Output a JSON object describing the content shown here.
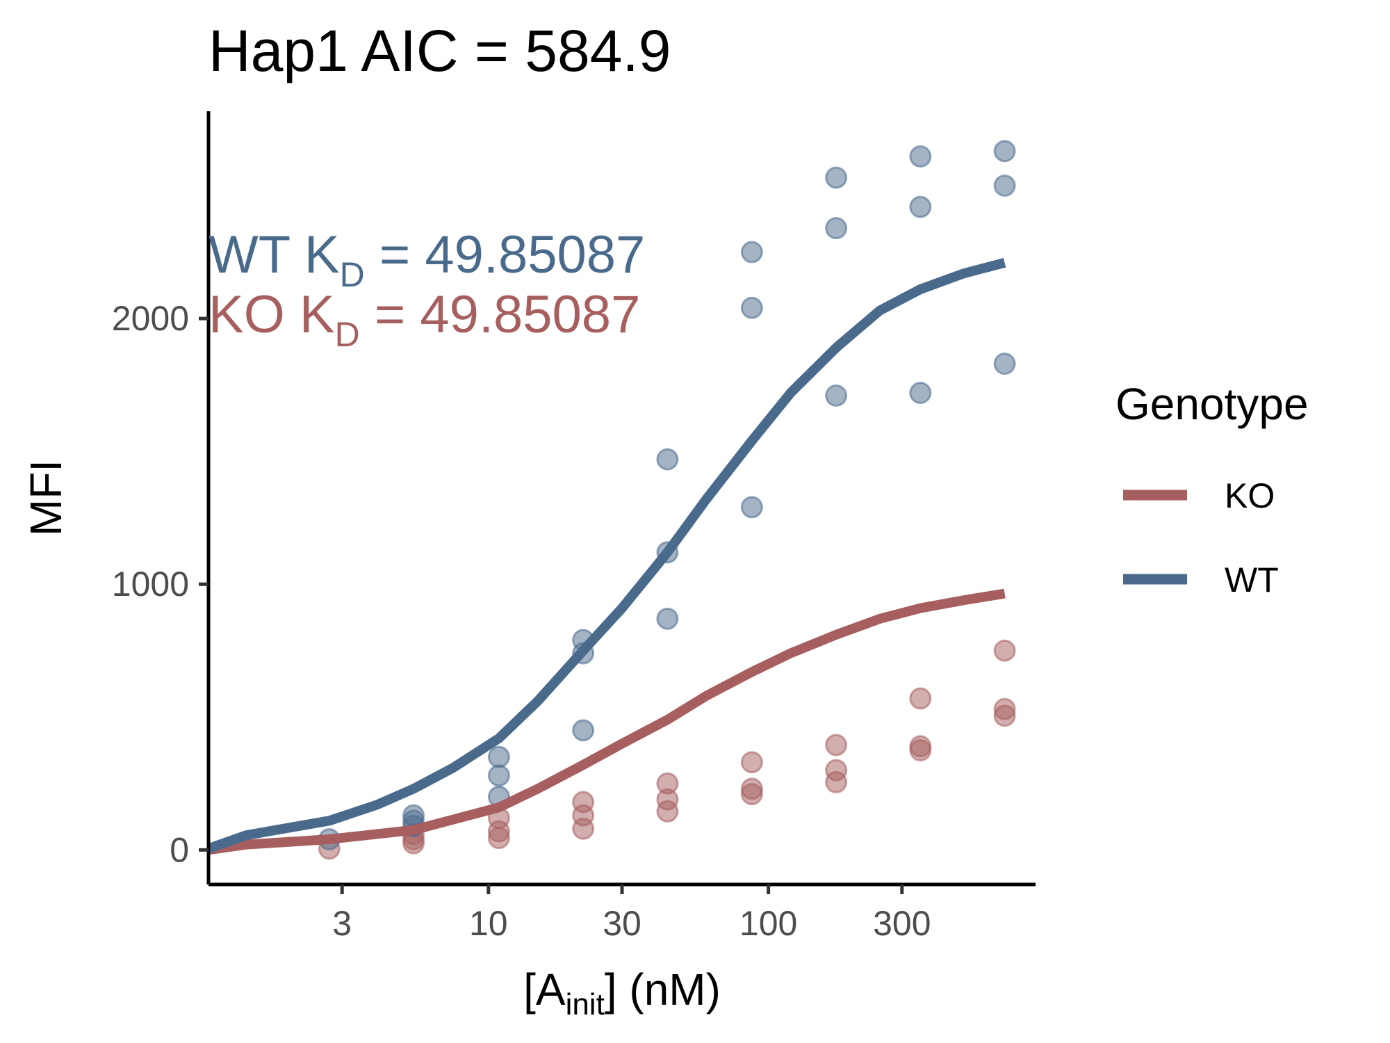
{
  "chart_data": {
    "type": "scatter",
    "title": "Hap1 AIC =  584.9",
    "xlabel": {
      "main": "[A",
      "sub": "init",
      "tail": "] (nM)"
    },
    "ylabel": "MFI",
    "x_scale": "log10",
    "xlim": [
      1.0,
      900
    ],
    "ylim": [
      -130,
      2780
    ],
    "x_ticks": [
      {
        "value": 3,
        "label": "3"
      },
      {
        "value": 10,
        "label": "10"
      },
      {
        "value": 30,
        "label": "30"
      },
      {
        "value": 100,
        "label": "100"
      },
      {
        "value": 300,
        "label": "300"
      }
    ],
    "y_ticks": [
      {
        "value": 0,
        "label": "0"
      },
      {
        "value": 1000,
        "label": "1000"
      },
      {
        "value": 2000,
        "label": "2000"
      }
    ],
    "grid": false,
    "legend": {
      "title": "Genotype",
      "position": "right",
      "entries": [
        {
          "label": "KO",
          "color": "#A65E5E"
        },
        {
          "label": "WT",
          "color": "#4A6A8C"
        }
      ]
    },
    "annotations": [
      {
        "series": "WT",
        "prefix": "WT  K",
        "sub": "D",
        "suffix": " = 49.85087",
        "color": "#4A6A8C"
      },
      {
        "series": "KO",
        "prefix": "KO  K",
        "sub": "D",
        "suffix": " = 49.85087",
        "color": "#A65E5E"
      }
    ],
    "series": [
      {
        "name": "WT",
        "color": "#4A6A8C",
        "points": [
          {
            "x": 2.7,
            "y": 40
          },
          {
            "x": 5.4,
            "y": 130
          },
          {
            "x": 5.4,
            "y": 110
          },
          {
            "x": 5.4,
            "y": 90
          },
          {
            "x": 10.9,
            "y": 350
          },
          {
            "x": 10.9,
            "y": 280
          },
          {
            "x": 10.9,
            "y": 200
          },
          {
            "x": 21.8,
            "y": 790
          },
          {
            "x": 21.8,
            "y": 740
          },
          {
            "x": 21.8,
            "y": 450
          },
          {
            "x": 43.6,
            "y": 1470
          },
          {
            "x": 43.6,
            "y": 1120
          },
          {
            "x": 43.6,
            "y": 870
          },
          {
            "x": 87.3,
            "y": 2250
          },
          {
            "x": 87.3,
            "y": 2040
          },
          {
            "x": 87.3,
            "y": 1290
          },
          {
            "x": 174.6,
            "y": 2530
          },
          {
            "x": 174.6,
            "y": 2340
          },
          {
            "x": 174.6,
            "y": 1710
          },
          {
            "x": 349.1,
            "y": 2610
          },
          {
            "x": 349.1,
            "y": 2420
          },
          {
            "x": 349.1,
            "y": 1720
          },
          {
            "x": 698.2,
            "y": 2630
          },
          {
            "x": 698.2,
            "y": 2500
          },
          {
            "x": 698.2,
            "y": 1830
          }
        ],
        "fit": [
          {
            "x": 1.0,
            "y": 5
          },
          {
            "x": 1.36,
            "y": 55
          },
          {
            "x": 2.7,
            "y": 110
          },
          {
            "x": 4.0,
            "y": 170
          },
          {
            "x": 5.4,
            "y": 230
          },
          {
            "x": 7.5,
            "y": 310
          },
          {
            "x": 10.9,
            "y": 420
          },
          {
            "x": 15.0,
            "y": 560
          },
          {
            "x": 21.8,
            "y": 750
          },
          {
            "x": 30.0,
            "y": 910
          },
          {
            "x": 43.6,
            "y": 1120
          },
          {
            "x": 60.0,
            "y": 1320
          },
          {
            "x": 87.3,
            "y": 1540
          },
          {
            "x": 120.0,
            "y": 1720
          },
          {
            "x": 174.6,
            "y": 1890
          },
          {
            "x": 250.0,
            "y": 2030
          },
          {
            "x": 349.1,
            "y": 2110
          },
          {
            "x": 500.0,
            "y": 2170
          },
          {
            "x": 698.2,
            "y": 2210
          }
        ]
      },
      {
        "name": "KO",
        "color": "#A65E5E",
        "points": [
          {
            "x": 2.7,
            "y": 5
          },
          {
            "x": 5.4,
            "y": 60
          },
          {
            "x": 5.4,
            "y": 40
          },
          {
            "x": 5.4,
            "y": 25
          },
          {
            "x": 10.9,
            "y": 120
          },
          {
            "x": 10.9,
            "y": 70
          },
          {
            "x": 10.9,
            "y": 45
          },
          {
            "x": 21.8,
            "y": 180
          },
          {
            "x": 21.8,
            "y": 130
          },
          {
            "x": 21.8,
            "y": 80
          },
          {
            "x": 43.6,
            "y": 250
          },
          {
            "x": 43.6,
            "y": 190
          },
          {
            "x": 43.6,
            "y": 145
          },
          {
            "x": 87.3,
            "y": 330
          },
          {
            "x": 87.3,
            "y": 230
          },
          {
            "x": 87.3,
            "y": 210
          },
          {
            "x": 174.6,
            "y": 395
          },
          {
            "x": 174.6,
            "y": 300
          },
          {
            "x": 174.6,
            "y": 255
          },
          {
            "x": 349.1,
            "y": 570
          },
          {
            "x": 349.1,
            "y": 390
          },
          {
            "x": 349.1,
            "y": 375
          },
          {
            "x": 698.2,
            "y": 750
          },
          {
            "x": 698.2,
            "y": 530
          },
          {
            "x": 698.2,
            "y": 505
          }
        ],
        "fit": [
          {
            "x": 1.0,
            "y": 0
          },
          {
            "x": 1.36,
            "y": 20
          },
          {
            "x": 2.7,
            "y": 40
          },
          {
            "x": 5.4,
            "y": 75
          },
          {
            "x": 10.9,
            "y": 160
          },
          {
            "x": 15.0,
            "y": 230
          },
          {
            "x": 21.8,
            "y": 320
          },
          {
            "x": 30.0,
            "y": 400
          },
          {
            "x": 43.6,
            "y": 490
          },
          {
            "x": 60.0,
            "y": 580
          },
          {
            "x": 87.3,
            "y": 670
          },
          {
            "x": 120.0,
            "y": 740
          },
          {
            "x": 174.6,
            "y": 810
          },
          {
            "x": 250.0,
            "y": 870
          },
          {
            "x": 349.1,
            "y": 910
          },
          {
            "x": 500.0,
            "y": 940
          },
          {
            "x": 698.2,
            "y": 965
          }
        ]
      }
    ]
  }
}
